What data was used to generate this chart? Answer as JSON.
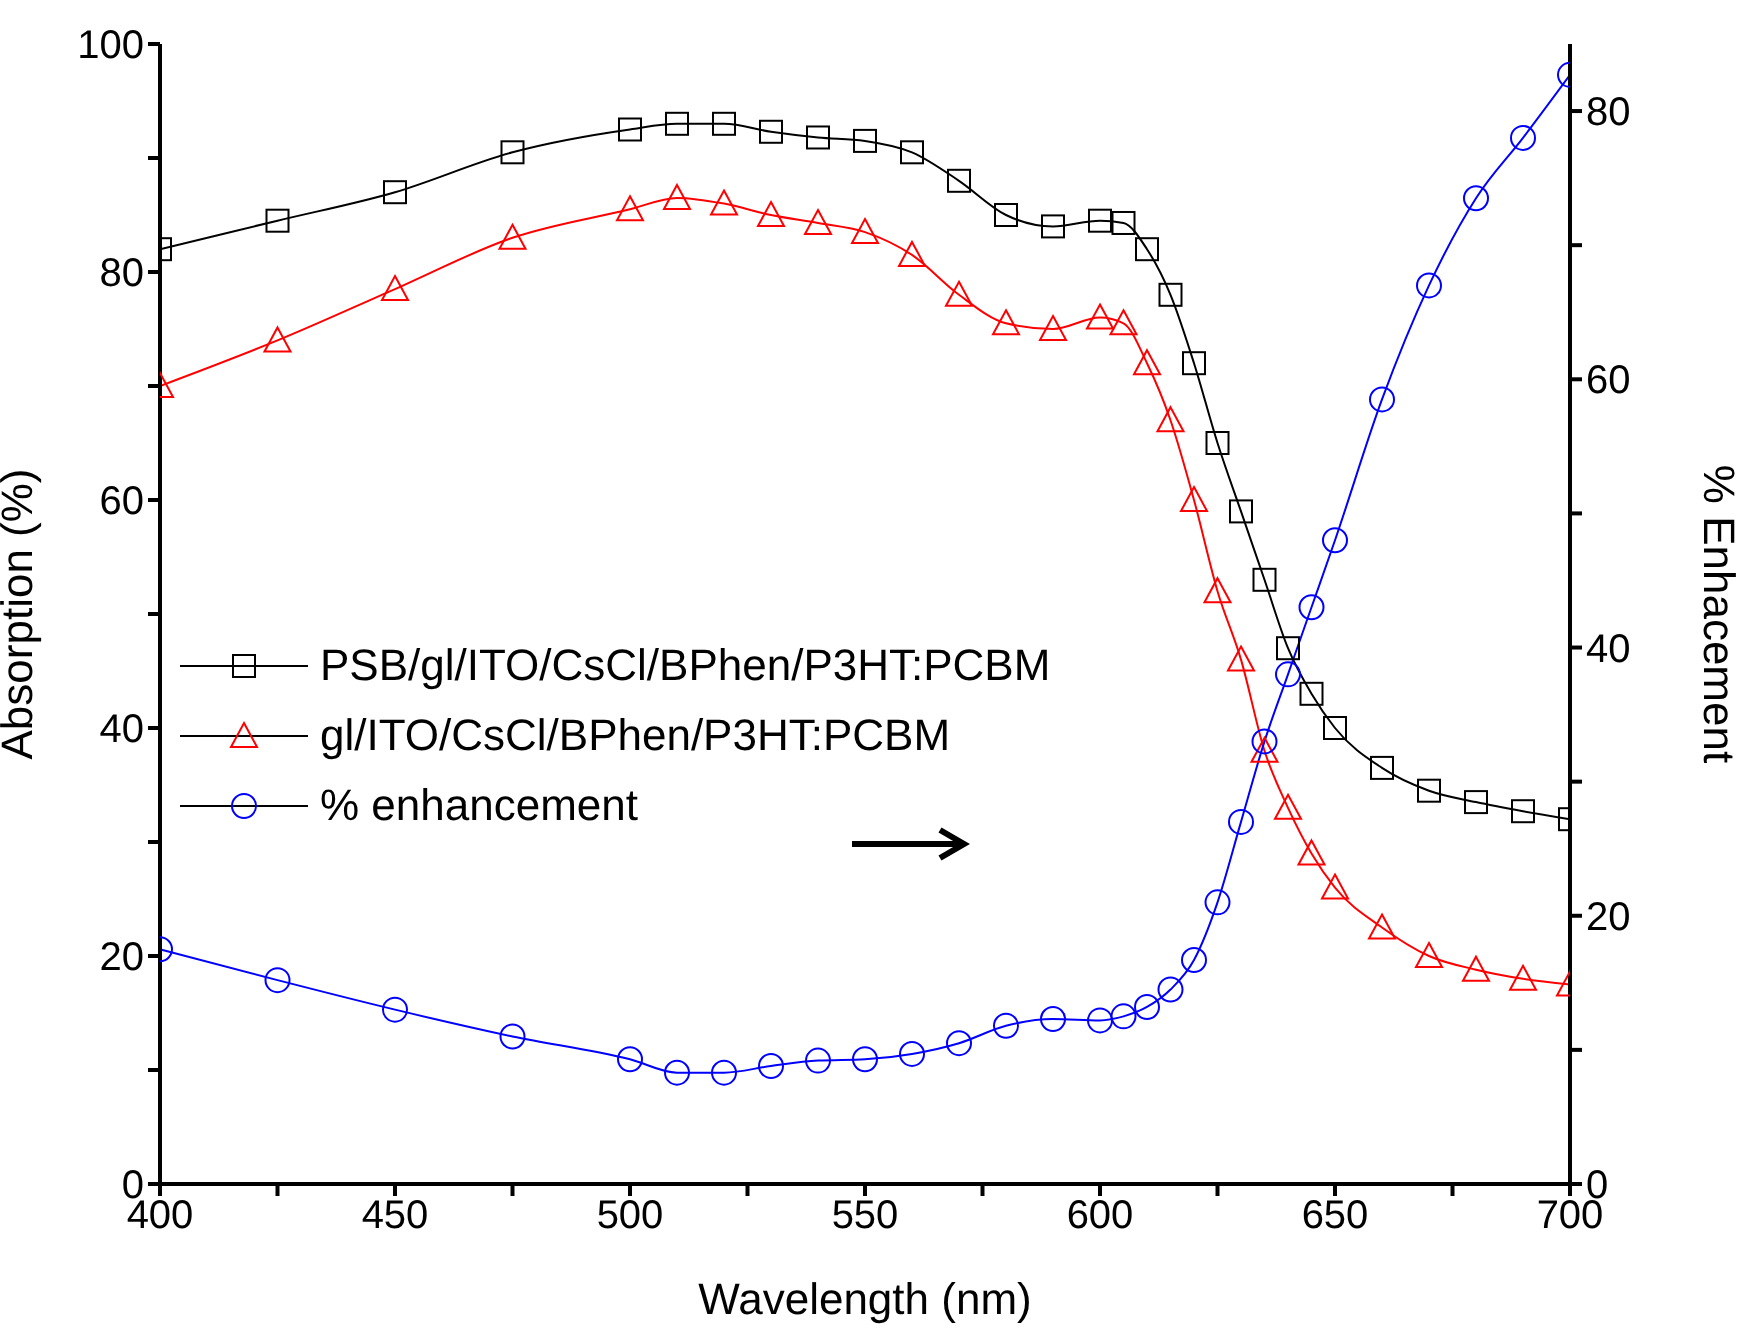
{
  "chart_data": {
    "type": "line",
    "xlabel": "Wavelength (nm)",
    "ylabel": "Absorption (%)",
    "y2label": "% Enhacement",
    "x": [
      400,
      425,
      450,
      475,
      500,
      510,
      520,
      530,
      540,
      550,
      560,
      570,
      580,
      590,
      600,
      605,
      610,
      615,
      620,
      625,
      630,
      635,
      640,
      645,
      650,
      660,
      670,
      680,
      690,
      700
    ],
    "series": [
      {
        "name": "PSB/gl/ITO/CsCl/BPhen/P3HT:PCBM",
        "color": "#000000",
        "marker": "square",
        "values": [
          82,
          84.5,
          87,
          90.5,
          92.5,
          93,
          93,
          92.3,
          91.8,
          91.5,
          90.5,
          88,
          85,
          84,
          84.5,
          84.3,
          82,
          78,
          72,
          65,
          59,
          53,
          47,
          43,
          40,
          36.5,
          34.5,
          33.5,
          32.7,
          32
        ]
      },
      {
        "name": "gl/ITO/CsCl/BPhen/P3HT:PCBM",
        "color": "#ff0000",
        "marker": "triangle",
        "values": [
          70,
          74,
          78.5,
          83,
          85.5,
          86.5,
          86,
          85,
          84.3,
          83.5,
          81.5,
          78,
          75.5,
          75,
          76,
          75.5,
          72,
          67,
          60,
          52,
          46,
          38,
          33,
          29,
          26,
          22.5,
          20,
          18.8,
          18,
          17.5
        ]
      },
      {
        "name": "% enhancement",
        "color": "#0000ff",
        "marker": "circle",
        "axis": "y2",
        "values": [
          17.5,
          15.2,
          13,
          11,
          9.3,
          8.3,
          8.3,
          8.8,
          9.2,
          9.3,
          9.7,
          10.5,
          11.8,
          12.3,
          12.2,
          12.5,
          13.2,
          14.5,
          16.7,
          21,
          27,
          33,
          38,
          43,
          48,
          58.5,
          67,
          73.5,
          78,
          82.7
        ]
      }
    ],
    "xlim": [
      400,
      700
    ],
    "xticks": [
      400,
      {
        "value": 425,
        "label": null
      },
      450,
      {
        "value": 475,
        "label": null
      },
      500,
      {
        "value": 525,
        "label": null
      },
      550,
      {
        "value": 575,
        "label": null
      },
      600,
      {
        "value": 625,
        "label": null
      },
      650,
      {
        "value": 675,
        "label": null
      },
      700
    ],
    "ylim": [
      0,
      100
    ],
    "yticks": [
      0,
      {
        "value": 10,
        "label": null
      },
      20,
      {
        "value": 30,
        "label": null
      },
      40,
      {
        "value": 50,
        "label": null
      },
      60,
      {
        "value": 70,
        "label": null
      },
      80,
      {
        "value": 90,
        "label": null
      },
      100
    ],
    "y2lim": [
      0,
      85
    ],
    "y2ticks": [
      0,
      {
        "value": 10,
        "label": null
      },
      20,
      {
        "value": 30,
        "label": null
      },
      40,
      {
        "value": 50,
        "label": null
      },
      60,
      {
        "value": 70,
        "label": null
      },
      80
    ],
    "legend": "left",
    "grid": false
  }
}
